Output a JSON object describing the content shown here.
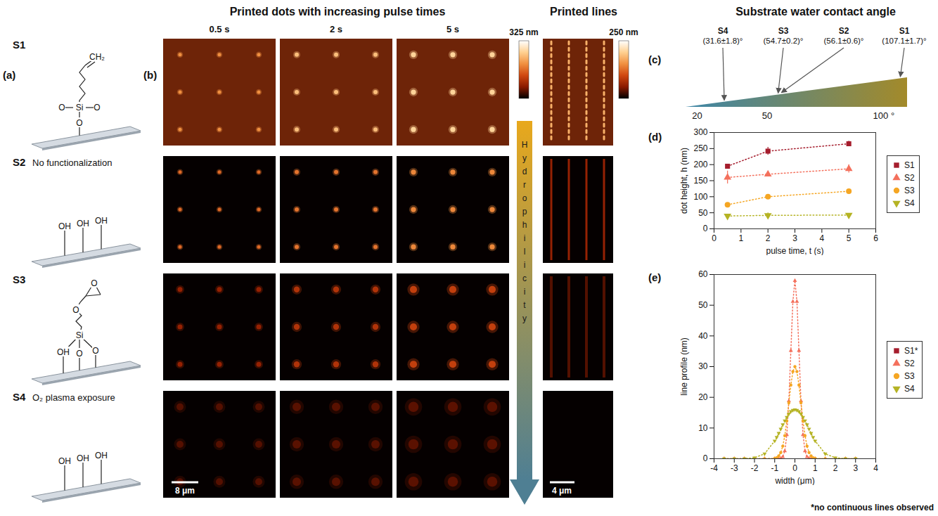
{
  "headings": {
    "dots": "Printed dots with increasing pulse times",
    "lines": "Printed lines",
    "contact_angle": "Substrate water contact angle"
  },
  "panel_a": {
    "letter": "(a)",
    "substrates": [
      {
        "name": "S1",
        "atoms": [
          "CH₂",
          "O",
          "Si",
          "O",
          "O"
        ]
      },
      {
        "name": "S2",
        "note": "No functionalization",
        "atoms": [
          "OH",
          "OH",
          "OH"
        ]
      },
      {
        "name": "S3",
        "atoms": [
          "O",
          "O",
          "Si",
          "OH",
          "O",
          "O"
        ]
      },
      {
        "name": "S4",
        "note": "O₂ plasma exposure",
        "atoms": [
          "OH",
          "OH",
          "OH"
        ]
      }
    ]
  },
  "panel_b": {
    "letter": "(b)",
    "pulse_times": [
      "0.5 s",
      "2 s",
      "5 s"
    ],
    "dots_colorbar": {
      "max": 325,
      "label": "325 nm"
    },
    "lines_colorbar": {
      "max": 250,
      "label": "250 nm"
    },
    "arrow_label": "Hydrophilicity",
    "dots_scale_bar": "8 μm",
    "lines_scale_bar": "4 μm"
  },
  "panel_c": {
    "letter": "(c)",
    "xlim": [
      15,
      110
    ],
    "xticks": [
      20,
      50,
      {
        "value": 100,
        "label": "100 °"
      }
    ],
    "markers": [
      {
        "name": "S4",
        "value": 31.6,
        "label": "(31.6±1.8)°"
      },
      {
        "name": "S3",
        "value": 54.7,
        "label": "(54.7±0.2)°"
      },
      {
        "name": "S2",
        "value": 56.1,
        "label": "(56.1±0.6)°"
      },
      {
        "name": "S1",
        "value": 107.1,
        "label": "(107.1±1.7)°"
      }
    ]
  },
  "chart_data": [
    {
      "letter": "(d)",
      "type": "line",
      "line_style": "dotted",
      "legend": "right",
      "x": [
        0.5,
        2,
        5
      ],
      "xlim": [
        0,
        6
      ],
      "xticks": [
        0,
        1,
        2,
        3,
        4,
        5,
        6
      ],
      "ylim": [
        0,
        300
      ],
      "yticks": [
        0,
        50,
        100,
        150,
        200,
        250,
        300
      ],
      "x_label": "pulse time, t (s)",
      "y_label": "dot height, h (nm)",
      "series": [
        {
          "name": "S1",
          "color": "#a51d2d",
          "marker": "square",
          "values": [
            195,
            242,
            265
          ],
          "errors": [
            5,
            12,
            8
          ]
        },
        {
          "name": "S2",
          "color": "#f4705c",
          "marker": "triangle",
          "values": [
            160,
            170,
            187
          ],
          "errors": [
            20,
            5,
            13
          ]
        },
        {
          "name": "S3",
          "color": "#f5a623",
          "marker": "circle",
          "values": [
            75,
            100,
            117
          ],
          "errors": [
            5,
            4,
            4
          ]
        },
        {
          "name": "S4",
          "color": "#b5b324",
          "marker": "triangle-down",
          "values": [
            40,
            42,
            43
          ],
          "errors": [
            3,
            8,
            3
          ]
        }
      ]
    },
    {
      "letter": "(e)",
      "type": "line",
      "line_style": "dotted",
      "legend": "right",
      "note": "*no continuous lines observed",
      "x": [
        -3.5,
        -3,
        -2.5,
        -2,
        -1.5,
        -1,
        -0.9,
        -0.8,
        -0.7,
        -0.6,
        -0.5,
        -0.4,
        -0.3,
        -0.2,
        -0.1,
        0,
        0.1,
        0.2,
        0.3,
        0.4,
        0.5,
        0.6,
        0.7,
        0.8,
        0.9,
        1,
        1.5,
        2,
        2.5,
        3
      ],
      "xlim": [
        -4,
        4
      ],
      "xticks": [
        -4,
        -3,
        -2,
        -1,
        0,
        1,
        2,
        3,
        4
      ],
      "ylim": [
        0,
        60
      ],
      "yticks": [
        0,
        10,
        20,
        30,
        40,
        50,
        60
      ],
      "x_label": "width (μm)",
      "y_label": "line profile (nm)",
      "series": [
        {
          "name": "S1*",
          "color": "#a51d2d",
          "marker": "square",
          "values": [
            null,
            null,
            null,
            null,
            null,
            null,
            null,
            null,
            null,
            null,
            null,
            null,
            null,
            null,
            null,
            null,
            null,
            null,
            null,
            null,
            null,
            null,
            null,
            null,
            null,
            null,
            null,
            null,
            null,
            null
          ]
        },
        {
          "name": "S2",
          "color": "#f4705c",
          "marker": "triangle",
          "values": [
            0,
            0,
            0,
            0,
            0,
            0,
            0,
            0,
            0.1,
            0.6,
            2.5,
            7.8,
            18.8,
            35.2,
            51.2,
            58,
            51.2,
            35.2,
            18.8,
            7.8,
            2.5,
            0.6,
            0.1,
            0,
            0,
            0,
            0,
            0,
            0,
            0
          ]
        },
        {
          "name": "S3",
          "color": "#f5a623",
          "marker": "circle",
          "values": [
            0,
            0,
            0,
            0,
            0,
            0.1,
            0.3,
            0.9,
            2.0,
            4.1,
            7.5,
            12.3,
            18.2,
            24.0,
            28.4,
            30,
            28.4,
            24.0,
            18.2,
            12.3,
            7.5,
            4.1,
            2.0,
            0.9,
            0.3,
            0.1,
            0,
            0,
            0,
            0
          ]
        },
        {
          "name": "S4",
          "color": "#b5b324",
          "marker": "triangle-down",
          "values": [
            0,
            0,
            0,
            0.3,
            1.6,
            5.8,
            7.0,
            8.3,
            9.7,
            11.1,
            12.4,
            13.5,
            14.6,
            15.4,
            15.8,
            16,
            15.8,
            15.4,
            14.6,
            13.5,
            12.4,
            11.1,
            9.7,
            8.3,
            7.0,
            5.8,
            1.6,
            0.3,
            0,
            0
          ]
        }
      ]
    }
  ]
}
